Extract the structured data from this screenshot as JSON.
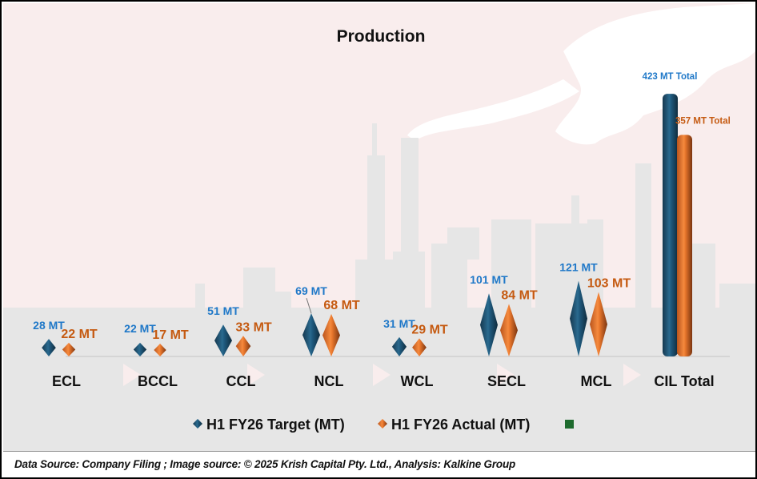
{
  "chart_data": {
    "type": "bar",
    "title": "Production",
    "categories": [
      "ECL",
      "BCCL",
      "CCL",
      "NCL",
      "WCL",
      "SECL",
      "MCL",
      "CIL Total"
    ],
    "series": [
      {
        "name": "H1 FY26 Target (MT)",
        "color": "#1f4e79",
        "label_color": "#1f78c8",
        "values": [
          28,
          22,
          51,
          69,
          31,
          101,
          121,
          423
        ]
      },
      {
        "name": "H1 FY26 Actual (MT)",
        "color": "#ed7d31",
        "label_color": "#c55a11",
        "values": [
          22,
          17,
          33,
          68,
          29,
          84,
          103,
          357
        ]
      }
    ],
    "data_labels": {
      "target": [
        "28 MT",
        "22 MT",
        "51 MT",
        "69 MT",
        "31 MT",
        "101 MT",
        "121 MT",
        "423 MT Total"
      ],
      "actual": [
        "22 MT",
        "17 MT",
        "33 MT",
        "68 MT",
        "29 MT",
        "84 MT",
        "103 MT",
        "357 MT Total"
      ]
    },
    "legend": {
      "position": "bottom",
      "entries": [
        "H1 FY26 Target (MT)",
        "H1 FY26 Actual (MT)",
        ""
      ],
      "extra_marker_color": "#1e6b2e"
    },
    "xlabel": "",
    "ylabel": "",
    "grid": false
  },
  "footer": {
    "source_text": "Data Source: Company Filing ; Image source: © 2025 Krish Capital Pty. Ltd., Analysis: Kalkine Group"
  }
}
